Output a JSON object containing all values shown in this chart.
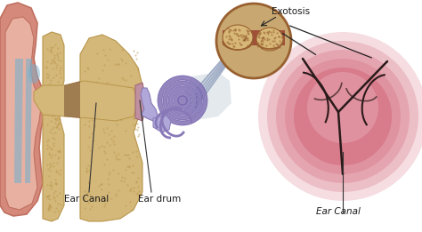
{
  "bg_color": "#ffffff",
  "labels": {
    "ear_canal_left": "Ear Canal",
    "ear_drum": "Ear drum",
    "ear_canal_right": "Ear Canal",
    "exostosis": "Exotosis"
  },
  "colors": {
    "pinna_outer": "#d4897a",
    "pinna_inner": "#e8b0a0",
    "canal_bone": "#d4b87a",
    "canal_bone_dark": "#b8954a",
    "blue_cartilage": "#7ab0cc",
    "inner_ear_purple": "#8878b8",
    "inner_ear_light": "#b0a8d8",
    "cochlea_dark": "#6858a8",
    "nerve_blue": "#8898b8",
    "eardrum_color": "#c090a0",
    "pink_circle_bg": "#d87888",
    "pink_circle_light": "#e8a8b4",
    "dark_line": "#2a1a1a",
    "small_circle_tan": "#c8a870",
    "small_circle_dark": "#986030",
    "exostosis_bump": "#d8b878",
    "text_color": "#1a1a1a",
    "line_arrow": "#333333"
  },
  "figsize": [
    4.74,
    2.61
  ],
  "dpi": 100
}
